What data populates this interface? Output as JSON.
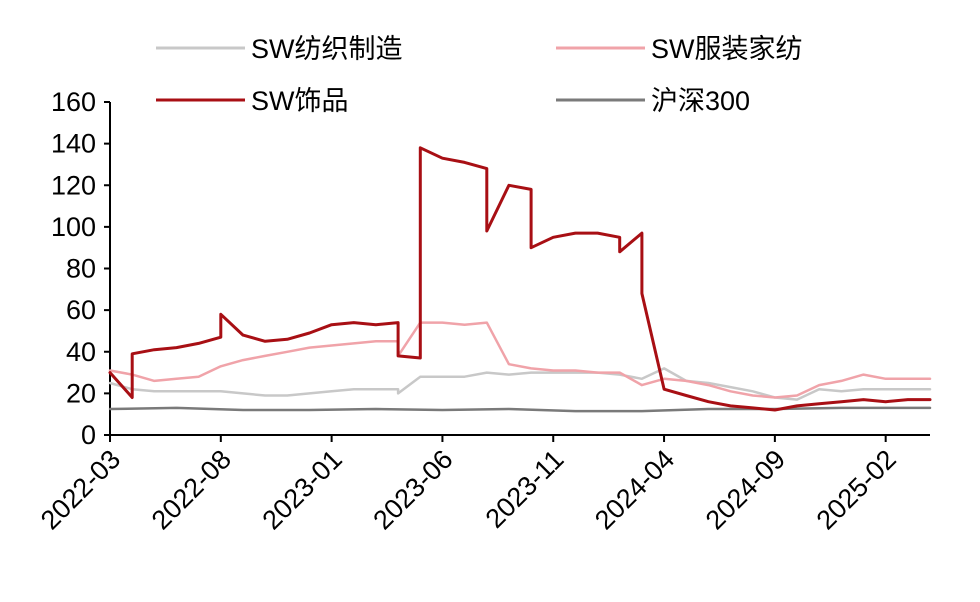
{
  "chart_data": {
    "type": "line",
    "title": "",
    "xlabel": "",
    "ylabel": "",
    "ylim": [
      0,
      160
    ],
    "yticks": [
      0,
      20,
      40,
      60,
      80,
      100,
      120,
      140,
      160
    ],
    "ytick_labels": [
      "0",
      "20",
      "40",
      "60",
      "80",
      "100",
      "120",
      "140",
      "160"
    ],
    "x_range": [
      "2022-03",
      "2025-04"
    ],
    "xtick_labels": [
      "2022-03",
      "2022-08",
      "2023-01",
      "2023-06",
      "2023-11",
      "2024-04",
      "2024-09",
      "2025-02"
    ],
    "grid": false,
    "legend_position": "top",
    "x_unit": "months",
    "series": [
      {
        "name": "SW纺织制造",
        "color": "#c8c8c8",
        "x": [
          "2022-03",
          "2022-04",
          "2022-05",
          "2022-06",
          "2022-07",
          "2022-08",
          "2022-09",
          "2022-10",
          "2022-11",
          "2022-12",
          "2023-01",
          "2023-02",
          "2023-03",
          "2023-04",
          "2023-04",
          "2023-05",
          "2023-06",
          "2023-07",
          "2023-08",
          "2023-09",
          "2023-10",
          "2023-11",
          "2023-12",
          "2024-01",
          "2024-02",
          "2024-03",
          "2024-04",
          "2024-05",
          "2024-06",
          "2024-07",
          "2024-08",
          "2024-09",
          "2024-10",
          "2024-11",
          "2024-12",
          "2025-01",
          "2025-02",
          "2025-03",
          "2025-04"
        ],
        "y": [
          25,
          22,
          21,
          21,
          21,
          21,
          20,
          19,
          19,
          20,
          21,
          22,
          22,
          22,
          20,
          28,
          28,
          28,
          30,
          29,
          30,
          30,
          30,
          30,
          29,
          27,
          32,
          26,
          25,
          23,
          21,
          18,
          17,
          22,
          21,
          22,
          22,
          22,
          22
        ]
      },
      {
        "name": "SW服装家纺",
        "color": "#f0a3a9",
        "x": [
          "2022-03",
          "2022-04",
          "2022-05",
          "2022-06",
          "2022-07",
          "2022-08",
          "2022-09",
          "2022-10",
          "2022-11",
          "2022-12",
          "2023-01",
          "2023-02",
          "2023-03",
          "2023-04",
          "2023-04",
          "2023-05",
          "2023-06",
          "2023-07",
          "2023-08",
          "2023-09",
          "2023-10",
          "2023-11",
          "2023-12",
          "2024-01",
          "2024-02",
          "2024-03",
          "2024-04",
          "2024-05",
          "2024-06",
          "2024-07",
          "2024-08",
          "2024-09",
          "2024-10",
          "2024-11",
          "2024-12",
          "2025-01",
          "2025-02",
          "2025-03",
          "2025-04"
        ],
        "y": [
          31,
          29,
          26,
          27,
          28,
          33,
          36,
          38,
          40,
          42,
          43,
          44,
          45,
          45,
          38,
          54,
          54,
          53,
          54,
          34,
          32,
          31,
          31,
          30,
          30,
          24,
          27,
          26,
          24,
          21,
          19,
          18,
          19,
          24,
          26,
          29,
          27,
          27,
          27
        ]
      },
      {
        "name": "SW饰品",
        "color": "#a80f14",
        "x": [
          "2022-03",
          "2022-04",
          "2022-04",
          "2022-05",
          "2022-06",
          "2022-07",
          "2022-08",
          "2022-08",
          "2022-09",
          "2022-10",
          "2022-11",
          "2022-12",
          "2023-01",
          "2023-02",
          "2023-03",
          "2023-04",
          "2023-04",
          "2023-05",
          "2023-05",
          "2023-06",
          "2023-07",
          "2023-08",
          "2023-08",
          "2023-09",
          "2023-10",
          "2023-10",
          "2023-11",
          "2023-12",
          "2024-01",
          "2024-02",
          "2024-02",
          "2024-03",
          "2024-03",
          "2024-04",
          "2024-05",
          "2024-06",
          "2024-07",
          "2024-08",
          "2024-09",
          "2024-10",
          "2024-11",
          "2024-12",
          "2025-01",
          "2025-02",
          "2025-03",
          "2025-04"
        ],
        "y": [
          30,
          18,
          39,
          41,
          42,
          44,
          47,
          58,
          48,
          45,
          46,
          49,
          53,
          54,
          53,
          54,
          38,
          37,
          138,
          133,
          131,
          128,
          98,
          120,
          118,
          90,
          95,
          97,
          97,
          95,
          88,
          97,
          68,
          22,
          19,
          16,
          14,
          13,
          12,
          14,
          15,
          16,
          17,
          16,
          17,
          17
        ]
      },
      {
        "name": "沪深300",
        "color": "#7a7a7a",
        "x": [
          "2022-03",
          "2022-06",
          "2022-09",
          "2022-12",
          "2023-03",
          "2023-06",
          "2023-09",
          "2023-12",
          "2024-03",
          "2024-06",
          "2024-09",
          "2024-12",
          "2025-03",
          "2025-04"
        ],
        "y": [
          12.5,
          13,
          12,
          12,
          12.5,
          12,
          12.5,
          11.5,
          11.5,
          12.5,
          12.5,
          13,
          13,
          13
        ]
      }
    ]
  }
}
